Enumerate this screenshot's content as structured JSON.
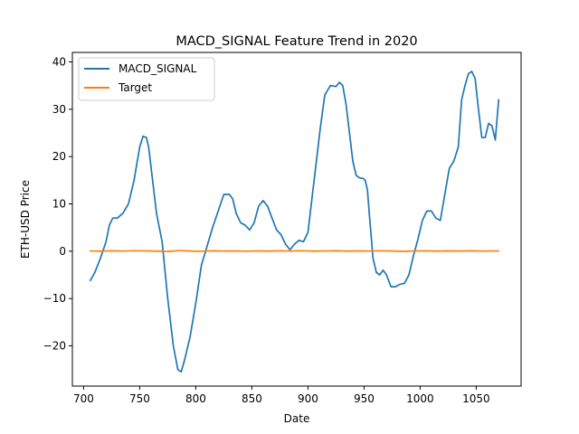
{
  "chart_data": {
    "type": "line",
    "title": "MACD_SIGNAL Feature Trend in 2020",
    "xlabel": "Date",
    "ylabel": "ETH-USD Price",
    "xlim": [
      690,
      1090
    ],
    "ylim": [
      -28.5,
      42
    ],
    "xticks": [
      700,
      750,
      800,
      850,
      900,
      950,
      1000,
      1050
    ],
    "yticks": [
      -20,
      -10,
      0,
      10,
      20,
      30,
      40
    ],
    "legend_position": "upper-left",
    "grid": false,
    "series": [
      {
        "name": "MACD_SIGNAL",
        "color": "#1f77b4",
        "x": [
          706,
          710,
          715,
          720,
          723,
          726,
          730,
          735,
          740,
          745,
          750,
          753,
          756,
          758,
          761,
          765,
          770,
          775,
          780,
          784,
          787,
          790,
          795,
          800,
          805,
          810,
          815,
          820,
          825,
          830,
          833,
          836,
          840,
          844,
          848,
          852,
          856,
          860,
          864,
          868,
          872,
          876,
          880,
          884,
          888,
          892,
          896,
          900,
          904,
          907,
          911,
          915,
          920,
          925,
          928,
          931,
          934,
          937,
          940,
          943,
          946,
          949,
          951,
          953,
          955,
          958,
          961,
          964,
          967,
          970,
          974,
          978,
          982,
          986,
          990,
          994,
          998,
          1002,
          1006,
          1010,
          1014,
          1018,
          1022,
          1026,
          1030,
          1034,
          1037,
          1040,
          1043,
          1046,
          1049,
          1052,
          1055,
          1058,
          1061,
          1064,
          1067,
          1070
        ],
        "y": [
          -6.2,
          -4.5,
          -1.5,
          2,
          5.5,
          7,
          7,
          8,
          10,
          15,
          22,
          24.3,
          24,
          22,
          16,
          8,
          2,
          -10,
          -20,
          -25,
          -25.5,
          -23,
          -18,
          -11,
          -3,
          1,
          5,
          8.5,
          12,
          12,
          11,
          8,
          6,
          5.5,
          4.5,
          6,
          9.5,
          10.7,
          9.5,
          7,
          4.5,
          3.5,
          1.5,
          0.3,
          1.5,
          2.3,
          2,
          4,
          12,
          18,
          26,
          33,
          35,
          34.8,
          35.7,
          35,
          31,
          25,
          19,
          16,
          15.5,
          15.4,
          15,
          13,
          7,
          -1.5,
          -4.5,
          -5,
          -4,
          -5,
          -7.5,
          -7.5,
          -7,
          -6.8,
          -5,
          -1,
          2.5,
          6.5,
          8.5,
          8.5,
          7,
          6.5,
          12,
          17.5,
          19,
          22,
          32,
          35,
          37.5,
          38,
          36.5,
          30,
          24,
          24,
          27,
          26.5,
          23.5,
          32
        ]
      },
      {
        "name": "Target",
        "color": "#ff7f0e",
        "x": [
          706,
          715,
          725,
          735,
          745,
          755,
          765,
          775,
          785,
          795,
          805,
          815,
          825,
          835,
          845,
          855,
          865,
          875,
          885,
          895,
          905,
          915,
          925,
          935,
          945,
          955,
          965,
          975,
          985,
          995,
          1005,
          1015,
          1025,
          1035,
          1045,
          1055,
          1065,
          1070
        ],
        "y": [
          0.05,
          0.02,
          0.08,
          0.03,
          0.1,
          0.06,
          0.02,
          -0.05,
          0.12,
          0.04,
          -0.02,
          0.08,
          0.03,
          0.05,
          0.0,
          0.06,
          0.02,
          0.07,
          0.04,
          0.1,
          0.01,
          0.05,
          0.08,
          0.02,
          0.06,
          0.03,
          0.1,
          0.04,
          -0.03,
          0.05,
          0.07,
          0.02,
          0.06,
          0.04,
          0.08,
          0.03,
          0.05,
          0.04
        ]
      }
    ]
  }
}
